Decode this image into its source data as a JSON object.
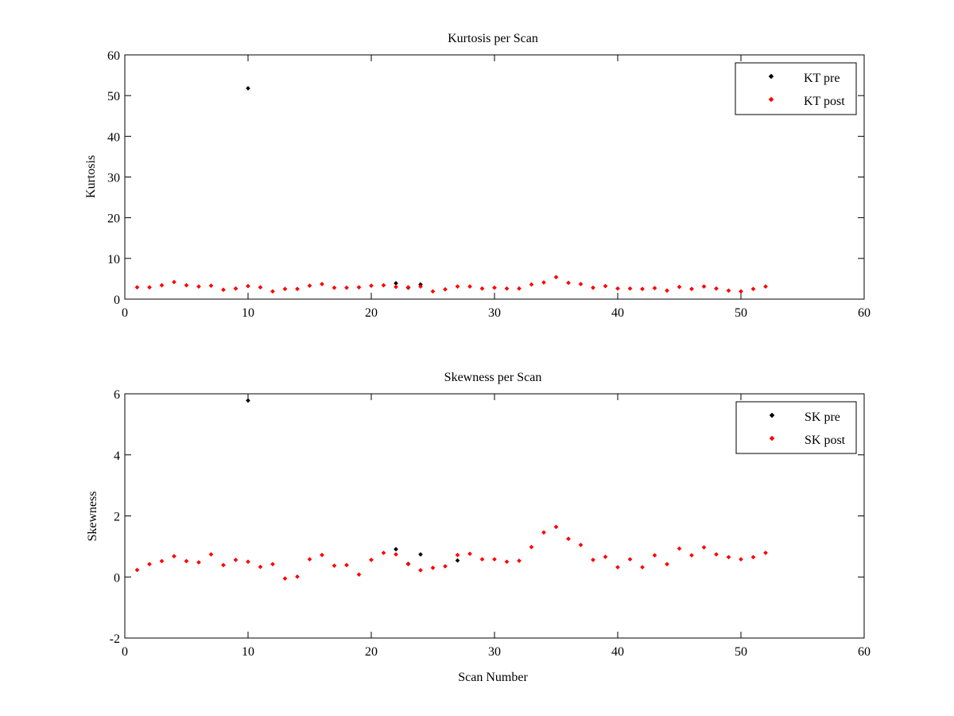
{
  "chart_data": [
    {
      "type": "scatter",
      "title": "Kurtosis per Scan",
      "xlabel": "",
      "ylabel": "Kurtosis",
      "xlim": [
        0,
        60
      ],
      "ylim": [
        0,
        60
      ],
      "xticks": [
        "0",
        "10",
        "20",
        "30",
        "40",
        "50",
        "60"
      ],
      "yticks": [
        "0",
        "10",
        "20",
        "30",
        "40",
        "50",
        "60"
      ],
      "legend_position": "top-right",
      "grid": false,
      "series": [
        {
          "name": "KT pre",
          "color": "#000000",
          "x": [
            10,
            22,
            23,
            24
          ],
          "y": [
            51.8,
            3.9,
            2.8,
            3.6
          ]
        },
        {
          "name": "KT post",
          "color": "#ff0000",
          "x": [
            1,
            2,
            3,
            4,
            5,
            6,
            7,
            8,
            9,
            10,
            11,
            12,
            13,
            14,
            15,
            16,
            17,
            18,
            19,
            20,
            21,
            22,
            23,
            24,
            25,
            26,
            27,
            28,
            29,
            30,
            31,
            32,
            33,
            34,
            35,
            36,
            37,
            38,
            39,
            40,
            41,
            42,
            43,
            44,
            45,
            46,
            47,
            48,
            49,
            50,
            51,
            52
          ],
          "y": [
            2.9,
            2.9,
            3.4,
            4.2,
            3.4,
            3.1,
            3.3,
            2.3,
            2.6,
            3.2,
            2.9,
            1.9,
            2.5,
            2.5,
            3.3,
            3.7,
            2.8,
            2.8,
            2.9,
            3.3,
            3.4,
            3.0,
            2.9,
            3.1,
            1.9,
            2.4,
            3.1,
            3.1,
            2.6,
            2.8,
            2.6,
            2.6,
            3.6,
            4.1,
            5.4,
            4.0,
            3.7,
            2.8,
            3.2,
            2.6,
            2.6,
            2.5,
            2.7,
            2.1,
            3.0,
            2.5,
            3.1,
            2.6,
            2.1,
            1.9,
            2.5,
            3.1
          ]
        }
      ]
    },
    {
      "type": "scatter",
      "title": "Skewness per Scan",
      "xlabel": "Scan Number",
      "ylabel": "Skewness",
      "xlim": [
        0,
        60
      ],
      "ylim": [
        -2,
        6
      ],
      "xticks": [
        "0",
        "10",
        "20",
        "30",
        "40",
        "50",
        "60"
      ],
      "yticks": [
        "-2",
        "0",
        "2",
        "4",
        "6"
      ],
      "legend_position": "top-right",
      "grid": false,
      "series": [
        {
          "name": "SK pre",
          "color": "#000000",
          "x": [
            10,
            22,
            23,
            24,
            27
          ],
          "y": [
            5.78,
            0.91,
            0.43,
            0.74,
            0.54
          ]
        },
        {
          "name": "SK post",
          "color": "#ff0000",
          "x": [
            1,
            2,
            3,
            4,
            5,
            6,
            7,
            8,
            9,
            10,
            11,
            12,
            13,
            14,
            15,
            16,
            17,
            18,
            19,
            20,
            21,
            22,
            23,
            24,
            25,
            26,
            27,
            28,
            29,
            30,
            31,
            32,
            33,
            34,
            35,
            36,
            37,
            38,
            39,
            40,
            41,
            42,
            43,
            44,
            45,
            46,
            47,
            48,
            49,
            50,
            51,
            52
          ],
          "y": [
            0.23,
            0.42,
            0.52,
            0.68,
            0.52,
            0.48,
            0.74,
            0.39,
            0.56,
            0.5,
            0.33,
            0.42,
            -0.05,
            0.01,
            0.58,
            0.72,
            0.37,
            0.39,
            0.08,
            0.56,
            0.79,
            0.74,
            0.42,
            0.22,
            0.3,
            0.35,
            0.72,
            0.76,
            0.58,
            0.58,
            0.5,
            0.53,
            0.98,
            1.46,
            1.64,
            1.25,
            1.05,
            0.56,
            0.66,
            0.32,
            0.58,
            0.32,
            0.71,
            0.42,
            0.93,
            0.71,
            0.97,
            0.74,
            0.65,
            0.58,
            0.65,
            0.79
          ]
        }
      ]
    }
  ]
}
